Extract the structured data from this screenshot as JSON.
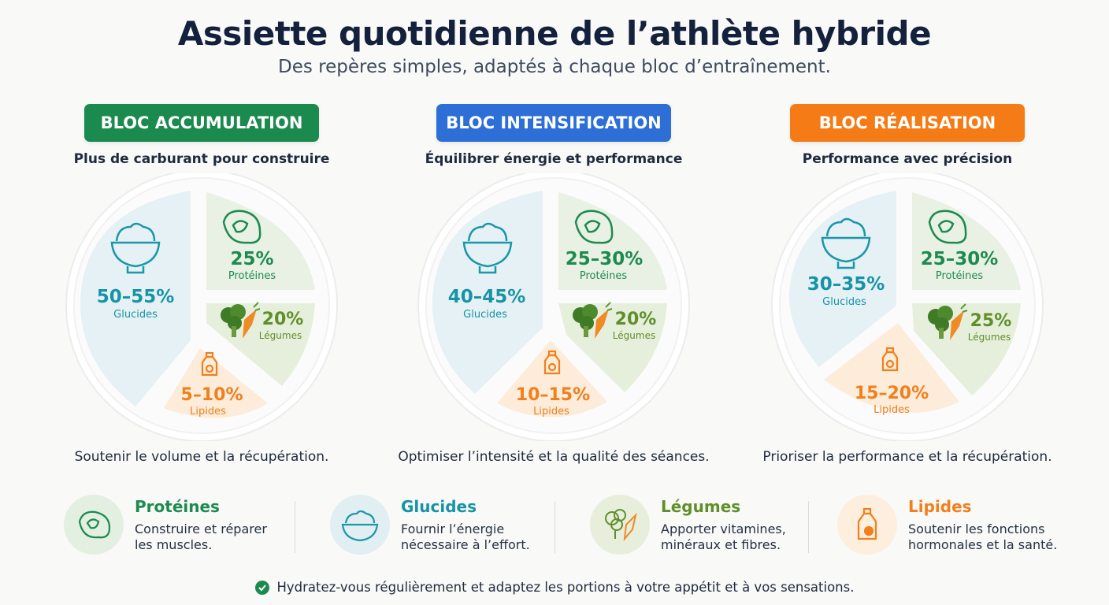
{
  "title": "Assiette quotidienne de l’athlète hybride",
  "subtitle": "Des repères simples, adaptés à chaque bloc d’entraînement.",
  "colors": {
    "accumulation": "#1a8a4e",
    "intensification": "#2d6fd6",
    "realisation": "#f47b16",
    "glucides": "#1793a6",
    "proteines": "#1d8a50",
    "legumes": "#5f8f2a",
    "lipides": "#f07f1c"
  },
  "blocks": [
    {
      "label": "BLOC ACCUMULATION",
      "tagline": "Plus de carburant pour construire",
      "caption": "Soutenir le volume et la récupération.",
      "glucides": {
        "value": "50–55%",
        "label": "Glucides"
      },
      "proteines": {
        "value": "25%",
        "label": "Protéines"
      },
      "legumes": {
        "value": "20%",
        "label": "Légumes"
      },
      "lipides": {
        "value": "5–10%",
        "label": "Lipides"
      }
    },
    {
      "label": "BLOC INTENSIFICATION",
      "tagline": "Équilibrer énergie et performance",
      "caption": "Optimiser l’intensité et la qualité des séances.",
      "glucides": {
        "value": "40–45%",
        "label": "Glucides"
      },
      "proteines": {
        "value": "25–30%",
        "label": "Protéines"
      },
      "legumes": {
        "value": "20%",
        "label": "Légumes"
      },
      "lipides": {
        "value": "10–15%",
        "label": "Lipides"
      }
    },
    {
      "label": "BLOC RÉALISATION",
      "tagline": "Performance avec précision",
      "caption": "Prioriser la performance et la récupération.",
      "glucides": {
        "value": "30–35%",
        "label": "Glucides"
      },
      "proteines": {
        "value": "25–30%",
        "label": "Protéines"
      },
      "legumes": {
        "value": "25%",
        "label": "Légumes"
      },
      "lipides": {
        "value": "15–20%",
        "label": "Lipides"
      }
    }
  ],
  "legend": [
    {
      "title": "Protéines",
      "description": "Construire et réparer les muscles.",
      "icon": "steak-icon"
    },
    {
      "title": "Glucides",
      "description": "Fournir l’énergie nécessaire à l’effort.",
      "icon": "rice-bowl-icon"
    },
    {
      "title": "Légumes",
      "description": "Apporter vitamines, minéraux et fibres.",
      "icon": "vegetables-icon"
    },
    {
      "title": "Lipides",
      "description": "Soutenir les fonctions hormonales et la santé.",
      "icon": "oil-bottle-icon"
    }
  ],
  "footer": "Hydratez-vous régulièrement et adaptez les portions à votre appétit et à vos sensations."
}
